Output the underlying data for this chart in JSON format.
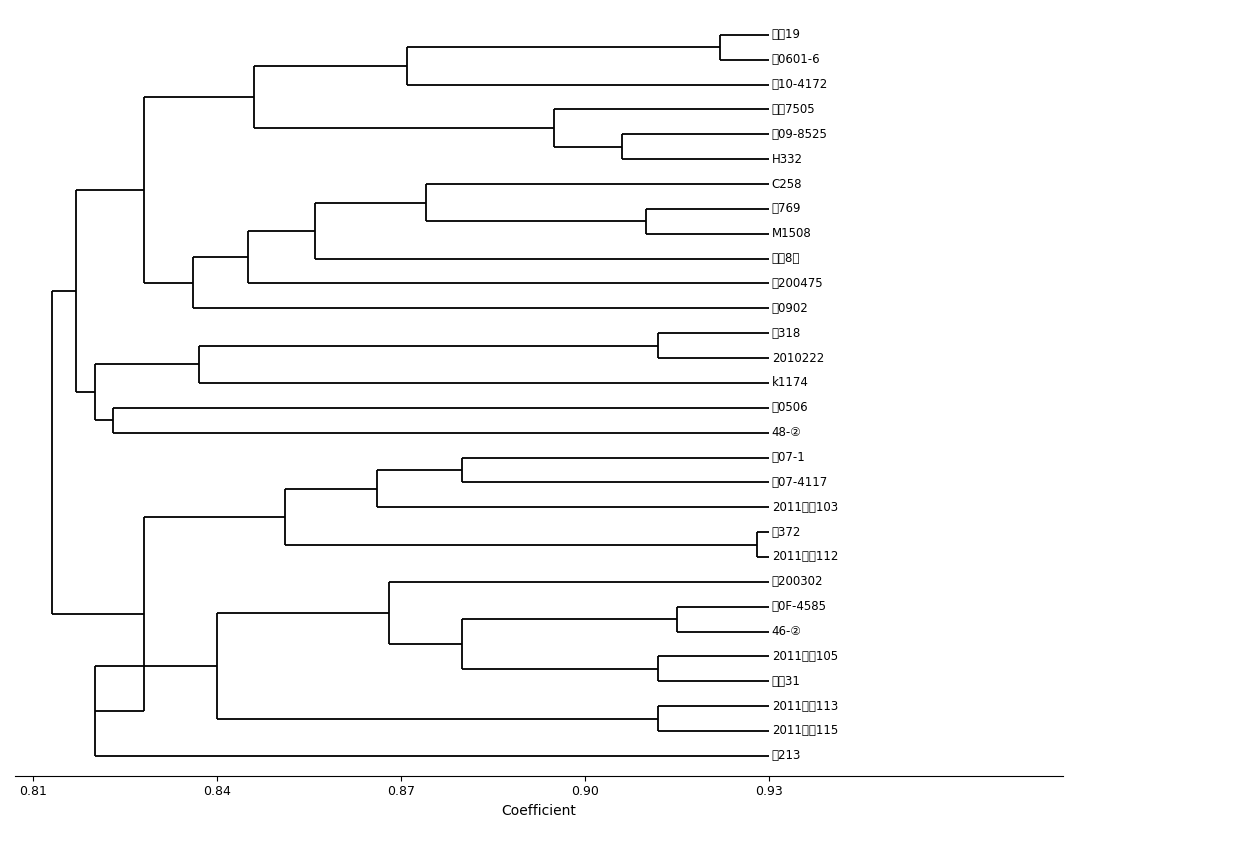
{
  "labels": [
    "冀谷19",
    "济0601-6",
    "安10-4172",
    "京谷7505",
    "安09-8525",
    "H332",
    "C258",
    "保769",
    "M1508",
    "航谷8号",
    "衡200475",
    "衡0902",
    "沧318",
    "2010222",
    "k1174",
    "济0506",
    "48-②",
    "郑07-1",
    "安07-4117",
    "2011区域103",
    "沧372",
    "2011区域112",
    "保200302",
    "安0F-4585",
    "46-②",
    "2011区域105",
    "冀谷31",
    "2011区域113",
    "2011区域115",
    "保213"
  ],
  "x_min": 0.81,
  "x_max": 0.93,
  "xlabel": "Coefficient",
  "background": "#ffffff",
  "line_color": "#000000",
  "line_width": 1.3,
  "label_fontsize": 8.5,
  "xlabel_fontsize": 10,
  "tick_fontsize": 9
}
